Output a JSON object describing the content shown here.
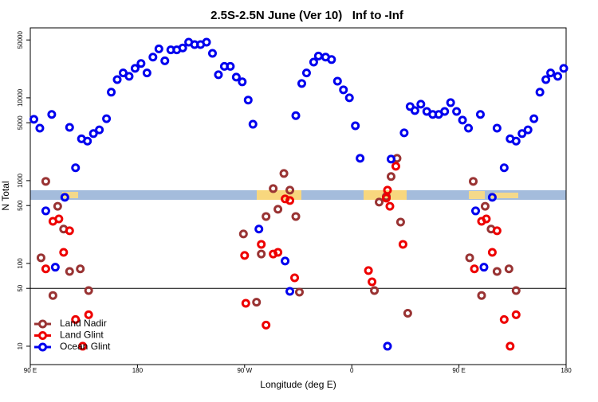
{
  "chart_data": {
    "type": "scatter",
    "title": "2.5S-2.5N June (Ver 10)   Inf to -Inf",
    "x_label": "Longitude (deg E)",
    "y_label": "N Total",
    "xlim": [
      90,
      540
    ],
    "xticks": [
      {
        "value": 90,
        "label": "90 E"
      },
      180,
      {
        "value": 270,
        "label": "90 W"
      },
      {
        "value": 360,
        "label": "0"
      },
      {
        "value": 450,
        "label": "90 E"
      },
      {
        "value": 540,
        "label": "180"
      }
    ],
    "ylim": [
      6,
      70000
    ],
    "log_y": true,
    "yticks": [
      10,
      50,
      100,
      500,
      1000,
      5000,
      10000,
      50000
    ],
    "hline": 50,
    "legend": "bottom-left",
    "series": [
      {
        "name": "Land Nadir",
        "color": "#993333",
        "x": [
          99,
          103,
          109,
          113,
          118,
          123,
          132,
          139,
          269,
          280,
          284,
          288,
          294,
          298,
          303,
          308,
          313,
          316,
          379,
          383,
          389,
          393,
          398,
          401,
          407,
          459,
          462,
          469,
          472,
          477,
          482,
          492,
          498
        ],
        "values": [
          117,
          980,
          41,
          490,
          260,
          80,
          86,
          47,
          227,
          34,
          130,
          369,
          801,
          451,
          1220,
          767,
          369,
          45,
          47,
          550,
          642,
          1120,
          1860,
          316,
          25,
          117,
          980,
          41,
          490,
          260,
          80,
          86,
          47
        ]
      },
      {
        "name": "Land Glint",
        "color": "#ee0000",
        "x": [
          103,
          109,
          114,
          118,
          123,
          128,
          134,
          139,
          270,
          271,
          284,
          288,
          294,
          298,
          304,
          308,
          312,
          374,
          377,
          389,
          390,
          392,
          397,
          403,
          463,
          469,
          473,
          478,
          482,
          488,
          493,
          498
        ],
        "values": [
          86,
          323,
          345,
          136,
          248,
          21,
          10,
          24,
          125,
          33,
          170,
          18,
          130,
          136,
          601,
          575,
          67,
          82,
          60,
          615,
          767,
          490,
          1490,
          170,
          86,
          323,
          345,
          136,
          248,
          21,
          10,
          24
        ]
      },
      {
        "name": "Ocean Glint",
        "color": "#0000ee",
        "x": [
          93,
          98,
          103,
          108,
          111,
          119,
          123,
          128,
          133,
          138,
          143,
          148,
          154,
          158,
          163,
          168,
          173,
          178,
          183,
          188,
          193,
          198,
          203,
          208,
          213,
          218,
          223,
          228,
          233,
          238,
          243,
          248,
          253,
          258,
          263,
          268,
          273,
          277,
          282,
          304,
          308,
          313,
          318,
          322,
          328,
          332,
          338,
          343,
          348,
          353,
          358,
          363,
          367,
          390,
          393,
          404,
          409,
          413,
          418,
          423,
          428,
          433,
          438,
          443,
          448,
          453,
          458,
          464,
          468,
          471,
          478,
          482,
          488,
          493,
          498,
          503,
          508,
          513,
          518,
          523,
          527,
          533,
          538
        ],
        "values": [
          5500,
          4300,
          431,
          6300,
          90,
          628,
          4400,
          1430,
          3200,
          3000,
          3700,
          4100,
          5600,
          11700,
          16600,
          20000,
          18200,
          22700,
          26000,
          20000,
          31000,
          39000,
          28000,
          38000,
          38000,
          40000,
          47000,
          44000,
          44000,
          47000,
          34500,
          19000,
          24000,
          24000,
          17800,
          15600,
          9400,
          4800,
          260,
          107,
          46,
          6100,
          14900,
          20000,
          27000,
          32000,
          31000,
          29000,
          15900,
          12500,
          10000,
          4600,
          1860,
          10,
          1820,
          3780,
          7840,
          7020,
          8380,
          6850,
          6300,
          6300,
          6850,
          8750,
          6850,
          5380,
          4300,
          431,
          6300,
          90,
          628,
          4300,
          1430,
          3200,
          3000,
          3700,
          4100,
          5600,
          11700,
          16600,
          20000,
          18200,
          22700
        ]
      }
    ]
  }
}
